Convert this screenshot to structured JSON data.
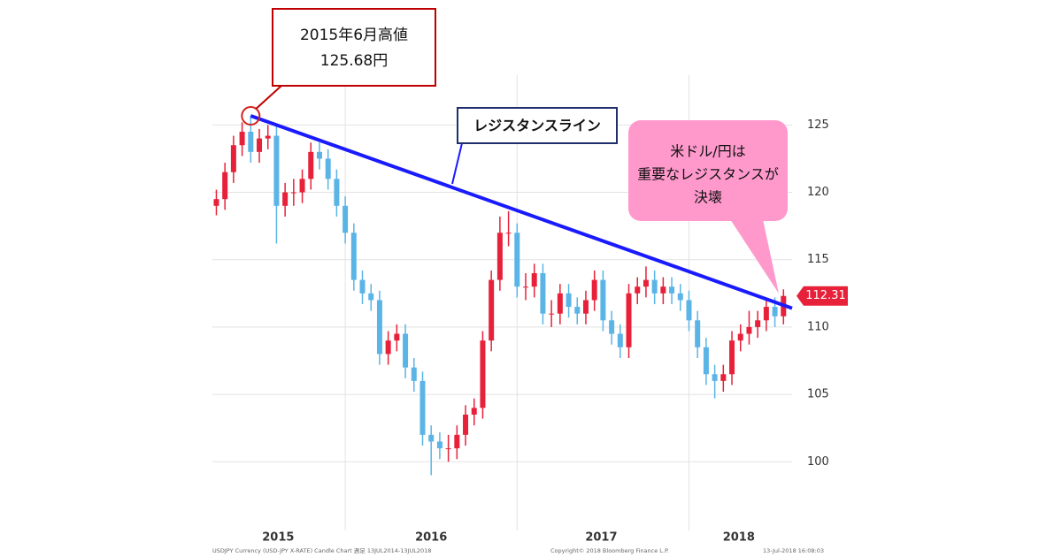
{
  "chart_data": {
    "type": "candlestick",
    "up_color": "#e8213a",
    "down_color": "#5bb4e6",
    "xlim": [
      2015.227,
      2018.6
    ],
    "xticks": [
      {
        "value": 2015.61,
        "label": "2015"
      },
      {
        "value": 2016.5,
        "label": "2016"
      },
      {
        "value": 2017.49,
        "label": "2017"
      },
      {
        "value": 2018.29,
        "label": "2018"
      }
    ],
    "xgrid": [
      2016,
      2017,
      2018
    ],
    "ylim": [
      94.9,
      128.7
    ],
    "yticks": [
      100,
      105,
      110,
      115,
      120,
      125
    ],
    "grid": true,
    "x": [
      2015.25,
      2015.3,
      2015.35,
      2015.4,
      2015.45,
      2015.5,
      2015.55,
      2015.6,
      2015.65,
      2015.7,
      2015.75,
      2015.8,
      2015.85,
      2015.9,
      2015.95,
      2016,
      2016.05,
      2016.1,
      2016.15,
      2016.2,
      2016.25,
      2016.3,
      2016.35,
      2016.4,
      2016.45,
      2016.5,
      2016.55,
      2016.6,
      2016.65,
      2016.7,
      2016.75,
      2016.8,
      2016.85,
      2016.9,
      2016.95,
      2017,
      2017.05,
      2017.1,
      2017.15,
      2017.2,
      2017.25,
      2017.3,
      2017.35,
      2017.4,
      2017.45,
      2017.5,
      2017.55,
      2017.6,
      2017.65,
      2017.7,
      2017.75,
      2017.8,
      2017.85,
      2017.9,
      2017.95,
      2018,
      2018.05,
      2018.1,
      2018.15,
      2018.2,
      2018.25,
      2018.3,
      2018.35,
      2018.4,
      2018.45,
      2018.5,
      2018.55
    ],
    "open": [
      119,
      119.5,
      121.5,
      123.5,
      124.5,
      123,
      124,
      124.2,
      119,
      120,
      120,
      121,
      123,
      122.5,
      121,
      119,
      117,
      113.5,
      112.5,
      112,
      108,
      109,
      109.5,
      107,
      106,
      102,
      101.5,
      101,
      101,
      102,
      103.5,
      104,
      109,
      113.5,
      117,
      117,
      113,
      113,
      114,
      111,
      111,
      112.5,
      111.5,
      111,
      112,
      113.5,
      110.5,
      109.5,
      108.5,
      112.5,
      113,
      113.5,
      112.5,
      113,
      112.5,
      112,
      110.5,
      108.5,
      106.5,
      106,
      106.5,
      109,
      109.5,
      110,
      110.5,
      111.5,
      110.8
    ],
    "high": [
      120.2,
      122.2,
      124.2,
      125.2,
      125.68,
      124.7,
      125,
      124.9,
      120.7,
      121,
      121.7,
      123.7,
      123.7,
      123.2,
      121.7,
      119.7,
      117.7,
      114.2,
      113.2,
      112.7,
      109.7,
      110.2,
      110.2,
      107.7,
      106.7,
      102.7,
      102.2,
      102,
      102.7,
      104.2,
      104.7,
      109.7,
      114.2,
      118.2,
      118.6,
      117.7,
      114,
      114.7,
      114.7,
      112,
      113.2,
      113.2,
      112.2,
      112.7,
      114.2,
      114.2,
      111.2,
      110.2,
      113.2,
      113.7,
      114.5,
      114.2,
      113.7,
      113.7,
      113.2,
      112.7,
      111.2,
      109.2,
      107.2,
      107.2,
      109.7,
      110.2,
      111.2,
      111.2,
      112.2,
      112.2,
      112.8
    ],
    "low": [
      118.3,
      118.7,
      120.7,
      122.7,
      122.2,
      122.2,
      123.2,
      116.2,
      118.2,
      119,
      119.2,
      120.2,
      121.7,
      120.2,
      118.2,
      116.2,
      112.7,
      111.7,
      111.2,
      107.2,
      107.2,
      108.2,
      106.2,
      105.2,
      101.2,
      99,
      100.2,
      100,
      100.2,
      101.2,
      102.7,
      103.2,
      108.2,
      112.7,
      116,
      112.2,
      112,
      112.2,
      110.2,
      110,
      110.2,
      110.7,
      110.2,
      110.2,
      111.2,
      109.7,
      108.7,
      107.7,
      107.7,
      111.7,
      112.2,
      111.7,
      111.7,
      111.7,
      111.2,
      109.7,
      107.7,
      105.7,
      104.7,
      105.2,
      105.7,
      108.2,
      108.7,
      109.2,
      109.7,
      110,
      110.2
    ],
    "close": [
      119.5,
      121.5,
      123.5,
      124.5,
      123,
      124,
      124.2,
      119,
      120,
      120,
      121,
      123,
      122.5,
      121,
      119,
      117,
      113.5,
      112.5,
      112,
      108,
      109,
      109.5,
      107,
      106,
      102,
      101.5,
      101,
      101,
      102,
      103.5,
      104,
      109,
      113.5,
      117,
      117,
      113,
      113,
      114,
      111,
      111,
      112.5,
      111.5,
      111,
      112,
      113.5,
      110.5,
      109.5,
      108.5,
      112.5,
      113,
      113.5,
      112.5,
      113,
      112.5,
      112,
      110.5,
      108.5,
      106.5,
      106,
      106.5,
      109,
      109.5,
      110,
      110.5,
      111.5,
      110.8,
      112.31
    ],
    "trendline": {
      "label": "レジスタンスライン",
      "color": "#1a1aff",
      "x": [
        2015.45,
        2018.6
      ],
      "y": [
        125.68,
        111.4
      ]
    },
    "high_note": {
      "lines": [
        "2015年6月高値",
        "125.68円"
      ],
      "x": 2015.45,
      "y": 125.68
    },
    "callout": {
      "lines": [
        "米ドル/円は",
        "重要なレジスタンスが",
        "決壊"
      ]
    },
    "last_price": 112.31,
    "footer": [
      "USDJPY Currency (USD-JPY X-RATE) Candle Chart 週足 13JUL2014-13JUL2018",
      "Copyright© 2018 Bloomberg Finance L.P.",
      "13-Jul-2018 16:08:03"
    ]
  }
}
